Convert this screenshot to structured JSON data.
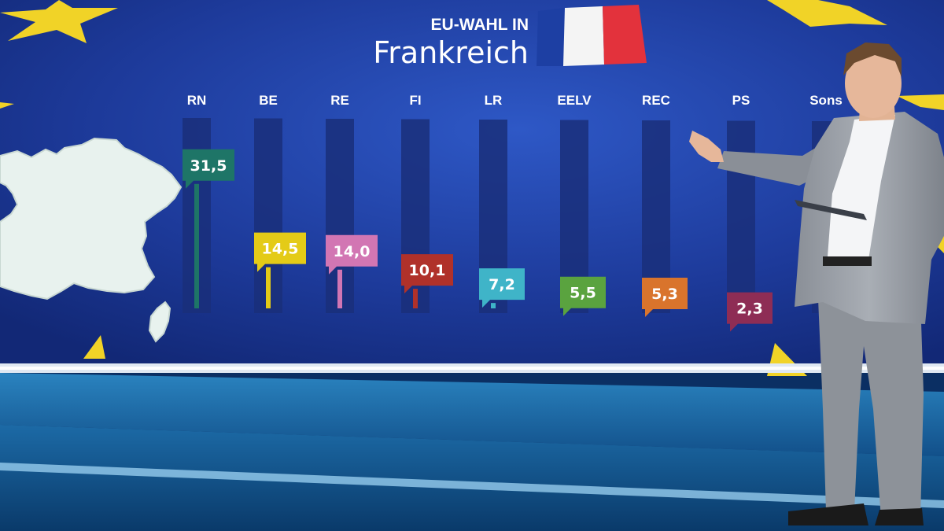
{
  "header": {
    "line1": "EU-WAHL IN",
    "line2": "Frankreich"
  },
  "colors": {
    "wall_dark": "#142c7e",
    "wall_light": "#2a4fb8",
    "star": "#f1d327",
    "map": "#e8f2ee",
    "floor": "#0f4d86",
    "flag_blue": "#1d3fa3",
    "flag_white": "#f4f4f4",
    "flag_red": "#e3323c"
  },
  "chart_data": {
    "type": "bar",
    "categories": [
      "RN",
      "BE",
      "RE",
      "FI",
      "LR",
      "EELV",
      "REC",
      "PS",
      "Sons"
    ],
    "values": [
      31.5,
      14.5,
      14.0,
      10.1,
      7.2,
      5.5,
      5.3,
      2.3,
      null
    ],
    "value_labels": [
      "31,5",
      "14,5",
      "14,0",
      "10,1",
      "7,2",
      "5,5",
      "5,3",
      "2,3",
      ""
    ],
    "colors": [
      "#1e7567",
      "#e4cb17",
      "#d276b3",
      "#b0312a",
      "#3fb4c8",
      "#5aa33f",
      "#d9742c",
      "#8e2d55",
      "#2f4aa7"
    ],
    "ylim": [
      0,
      35
    ]
  }
}
